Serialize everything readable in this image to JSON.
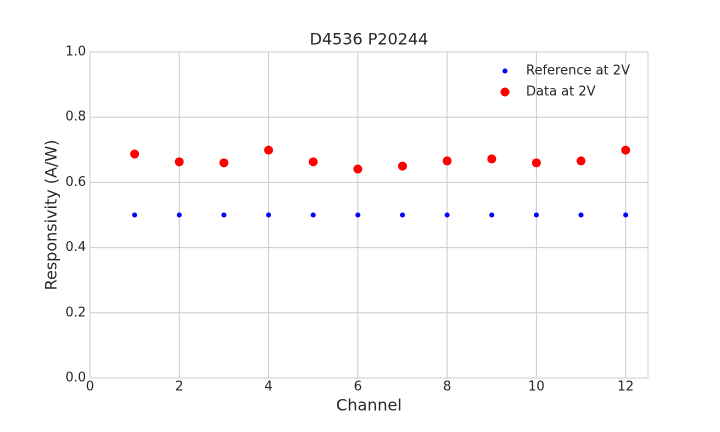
{
  "chart_data": {
    "type": "scatter",
    "title": "D4536 P20244",
    "x_label": "Channel",
    "y_label": "Responsivity (A/W)",
    "x": [
      1,
      2,
      3,
      4,
      5,
      6,
      7,
      8,
      9,
      10,
      11,
      12
    ],
    "series": [
      {
        "name": "Reference at 2V",
        "color": "#0000ff",
        "values": [
          0.5,
          0.5,
          0.5,
          0.5,
          0.5,
          0.5,
          0.5,
          0.5,
          0.5,
          0.5,
          0.5,
          0.5
        ]
      },
      {
        "name": "Data at 2V",
        "color": "#ff0000",
        "values": [
          0.687,
          0.663,
          0.66,
          0.699,
          0.663,
          0.641,
          0.65,
          0.666,
          0.672,
          0.66,
          0.666,
          0.699
        ]
      }
    ],
    "xlim": [
      0,
      12.5
    ],
    "xticks": [
      0,
      2,
      4,
      6,
      8,
      10,
      12
    ],
    "ylim": [
      0,
      1
    ],
    "yticks": [
      {
        "value": 0,
        "label": "0.0"
      },
      {
        "value": 0.2,
        "label": "0.2"
      },
      {
        "value": 0.4,
        "label": "0.4"
      },
      {
        "value": 0.6,
        "label": "0.6"
      },
      {
        "value": 0.8,
        "label": "0.8"
      },
      {
        "value": 1,
        "label": "1.0"
      }
    ],
    "grid": true,
    "legend": "upper right"
  }
}
